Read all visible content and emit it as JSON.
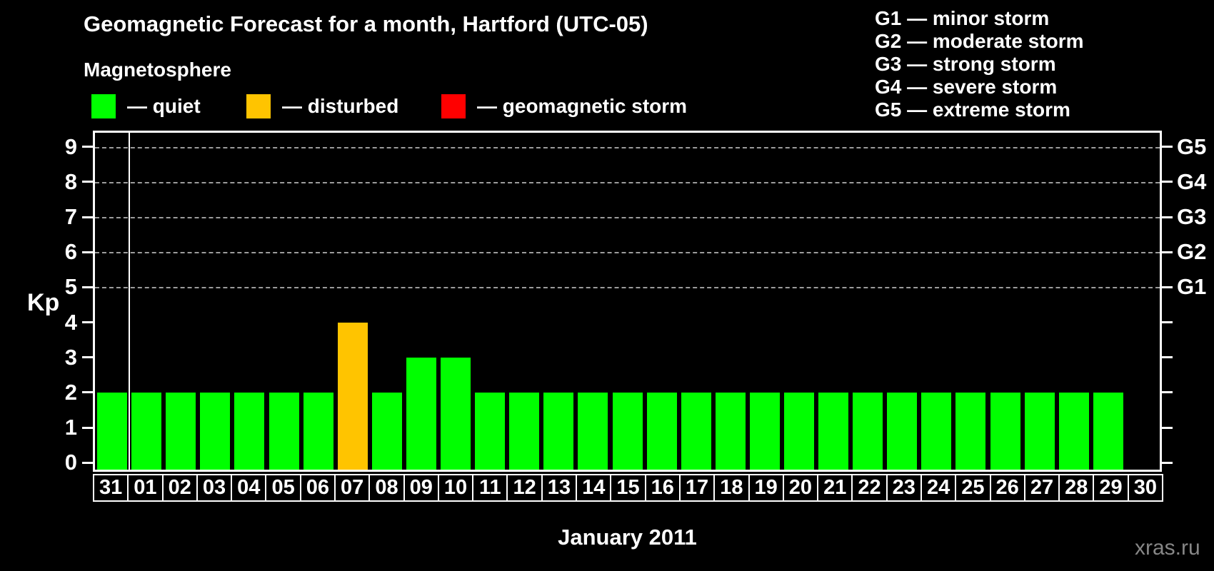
{
  "title": "Geomagnetic Forecast for a month, Hartford (UTC-05)",
  "subtitle": "Magnetosphere",
  "legend": {
    "dash": "—",
    "items": [
      {
        "key": "quiet",
        "label": "quiet",
        "color": "#00ff00"
      },
      {
        "key": "disturbed",
        "label": "disturbed",
        "color": "#ffc400"
      },
      {
        "key": "storm",
        "label": "geomagnetic storm",
        "color": "#ff0000"
      }
    ]
  },
  "storm_scale": [
    {
      "code": "G1",
      "label": "minor storm"
    },
    {
      "code": "G2",
      "label": "moderate storm"
    },
    {
      "code": "G3",
      "label": "strong storm"
    },
    {
      "code": "G4",
      "label": "severe storm"
    },
    {
      "code": "G5",
      "label": "extreme storm"
    }
  ],
  "chart_data": {
    "type": "bar",
    "title": "Geomagnetic Forecast for a month, Hartford (UTC-05)",
    "xlabel": "January 2011",
    "ylabel": "Kp",
    "ylim": [
      -0.2,
      9.4
    ],
    "yticks": [
      0,
      1,
      2,
      3,
      4,
      5,
      6,
      7,
      8,
      9
    ],
    "gridlines": [
      5,
      6,
      7,
      8,
      9
    ],
    "grid_style": "dashed",
    "legend_position": "top",
    "right_axis": [
      {
        "kp": 5,
        "label": "G1"
      },
      {
        "kp": 6,
        "label": "G2"
      },
      {
        "kp": 7,
        "label": "G3"
      },
      {
        "kp": 8,
        "label": "G4"
      },
      {
        "kp": 9,
        "label": "G5"
      }
    ],
    "month_separator_after_index": 0,
    "categories": [
      "31",
      "01",
      "02",
      "03",
      "04",
      "05",
      "06",
      "07",
      "08",
      "09",
      "10",
      "11",
      "12",
      "13",
      "14",
      "15",
      "16",
      "17",
      "18",
      "19",
      "20",
      "21",
      "22",
      "23",
      "24",
      "25",
      "26",
      "27",
      "28",
      "29",
      "30"
    ],
    "values": [
      2,
      2,
      2,
      2,
      2,
      2,
      2,
      4,
      2,
      3,
      3,
      2,
      2,
      2,
      2,
      2,
      2,
      2,
      2,
      2,
      2,
      2,
      2,
      2,
      2,
      2,
      2,
      2,
      2,
      2,
      null
    ],
    "statuses": [
      "quiet",
      "quiet",
      "quiet",
      "quiet",
      "quiet",
      "quiet",
      "quiet",
      "disturbed",
      "quiet",
      "quiet",
      "quiet",
      "quiet",
      "quiet",
      "quiet",
      "quiet",
      "quiet",
      "quiet",
      "quiet",
      "quiet",
      "quiet",
      "quiet",
      "quiet",
      "quiet",
      "quiet",
      "quiet",
      "quiet",
      "quiet",
      "quiet",
      "quiet",
      "quiet",
      null
    ]
  },
  "footer": {
    "xlabel": "January 2011",
    "watermark": "xras.ru"
  }
}
